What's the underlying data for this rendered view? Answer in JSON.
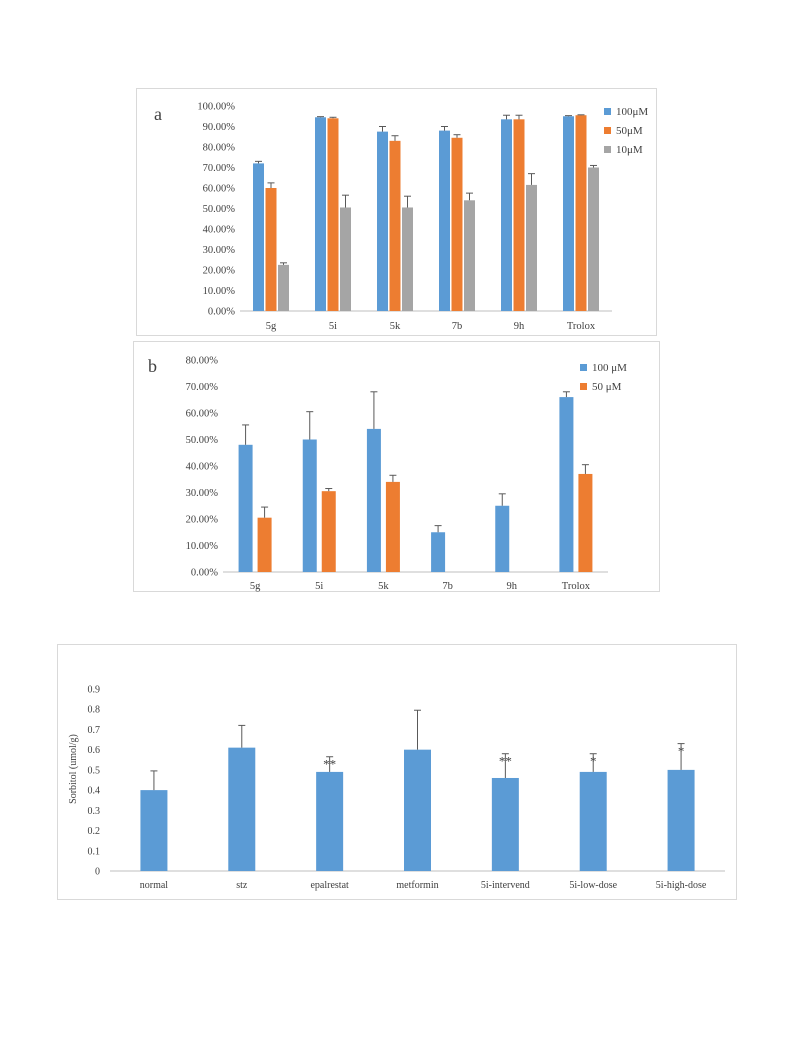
{
  "colors": {
    "blue": "#5b9bd5",
    "orange": "#ed7d31",
    "gray": "#a5a5a5",
    "axis": "#bfbfbf",
    "err": "#595959",
    "text": "#404040"
  },
  "chart_data": [
    {
      "panel_label": "a",
      "type": "bar",
      "categories": [
        "5g",
        "5i",
        "5k",
        "7b",
        "9h",
        "Trolox"
      ],
      "series": [
        {
          "name": "100μM",
          "color": "#5b9bd5",
          "values": [
            0.72,
            0.945,
            0.875,
            0.88,
            0.935,
            0.95
          ],
          "errors": [
            0.01,
            0.003,
            0.025,
            0.02,
            0.02,
            0.003
          ]
        },
        {
          "name": "50μM",
          "color": "#ed7d31",
          "values": [
            0.6,
            0.94,
            0.83,
            0.845,
            0.935,
            0.955
          ],
          "errors": [
            0.025,
            0.005,
            0.025,
            0.015,
            0.02,
            0.002
          ]
        },
        {
          "name": "10μM",
          "color": "#a5a5a5",
          "values": [
            0.225,
            0.505,
            0.505,
            0.54,
            0.615,
            0.7
          ],
          "errors": [
            0.01,
            0.06,
            0.055,
            0.035,
            0.055,
            0.01
          ]
        }
      ],
      "yticks": [
        "0.00%",
        "10.00%",
        "20.00%",
        "30.00%",
        "40.00%",
        "50.00%",
        "60.00%",
        "70.00%",
        "80.00%",
        "90.00%",
        "100.00%"
      ],
      "ylim": [
        0,
        1.0
      ],
      "grid": false,
      "legend": "right"
    },
    {
      "panel_label": "b",
      "type": "bar",
      "categories": [
        "5g",
        "5i",
        "5k",
        "7b",
        "9h",
        "Trolox"
      ],
      "series": [
        {
          "name": "100 μM",
          "color": "#5b9bd5",
          "values": [
            0.48,
            0.5,
            0.54,
            0.15,
            0.25,
            0.66
          ],
          "errors": [
            0.075,
            0.105,
            0.14,
            0.025,
            0.045,
            0.02
          ]
        },
        {
          "name": "50 μM",
          "color": "#ed7d31",
          "values": [
            0.205,
            0.305,
            0.34,
            null,
            null,
            0.37
          ],
          "errors": [
            0.04,
            0.01,
            0.025,
            null,
            null,
            0.035
          ]
        }
      ],
      "yticks": [
        "0.00%",
        "10.00%",
        "20.00%",
        "30.00%",
        "40.00%",
        "50.00%",
        "60.00%",
        "70.00%",
        "80.00%"
      ],
      "ylim": [
        0,
        0.8
      ],
      "grid": false,
      "legend": "top-right"
    },
    {
      "type": "bar",
      "categories": [
        "normal",
        "stz",
        "epalrestat",
        "metformin",
        "5i-intervend",
        "5i-low-dose",
        "5i-high-dose"
      ],
      "series": [
        {
          "color": "#5b9bd5",
          "values": [
            0.4,
            0.61,
            0.49,
            0.6,
            0.46,
            0.49,
            0.5
          ],
          "errors": [
            0.095,
            0.11,
            0.075,
            0.195,
            0.12,
            0.09,
            0.13
          ]
        }
      ],
      "annotations": [
        "",
        "",
        "**",
        "",
        "**",
        "*",
        "*"
      ],
      "ylabel": "Sorbitol (umol/g)",
      "yticks": [
        "0",
        "0.1",
        "0.2",
        "0.3",
        "0.4",
        "0.5",
        "0.6",
        "0.7",
        "0.8",
        "0.9"
      ],
      "ylim": [
        0,
        0.9
      ],
      "grid": false,
      "legend": "none"
    }
  ]
}
